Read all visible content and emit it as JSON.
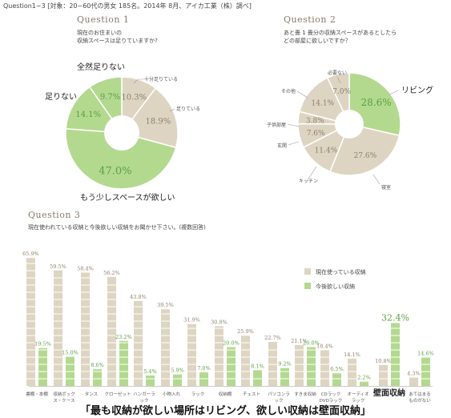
{
  "header": "Question1~3 [対象：20~60代の男女 185名。2014年 8月、アイカ工業（株）調べ]",
  "colors": {
    "green": "#b3d98f",
    "beige": "#ddd5c2",
    "green_text": "#5aa13e",
    "beige_text": "#8c7f6a",
    "label": "#555555"
  },
  "q1": {
    "title": "Question 1",
    "text_lines": [
      "現在のお住まいの",
      "収納スペースは足りていますか?"
    ]
  },
  "q2": {
    "title": "Question 2",
    "text_lines": [
      "あと畳 1 畳分の収納スペースがあるとしたら",
      "どの部屋に欲しいですか？"
    ]
  },
  "q3": {
    "title": "Question 3",
    "text": "現在使われている収納と今後欲しい収納をお聞かせ下さい。(複数回答)"
  },
  "footer": "「最も収納が欲しい場所はリビング、欲しい収納は壁面収納」",
  "chart_data": [
    {
      "type": "pie",
      "labels": [
        "十分足りている",
        "足りている",
        "もう少しスペースが欲しい",
        "足りない",
        "全然足りない"
      ],
      "values": [
        10.3,
        18.9,
        47.0,
        14.1,
        9.7
      ],
      "value_labels": [
        "10.3%",
        "18.9%",
        "47.0%",
        "14.1%",
        "9.7%"
      ],
      "colors": [
        "#ddd5c2",
        "#ddd5c2",
        "#b3d98f",
        "#b3d98f",
        "#b3d98f"
      ]
    },
    {
      "type": "pie",
      "labels": [
        "リビング",
        "寝室",
        "キッチン",
        "玄関",
        "子供部屋",
        "その他",
        "必要ない"
      ],
      "values": [
        28.6,
        27.6,
        11.4,
        7.6,
        3.8,
        14.1,
        7.0
      ],
      "value_labels": [
        "28.6%",
        "27.6%",
        "11.4%",
        "7.6%",
        "3.8%",
        "14.1%",
        "7.0%"
      ],
      "colors": [
        "#b3d98f",
        "#ddd5c2",
        "#ddd5c2",
        "#ddd5c2",
        "#ddd5c2",
        "#ddd5c2",
        "#ddd5c2"
      ]
    },
    {
      "type": "bar",
      "categories": [
        "書棚・本棚",
        "収納ボックス・ケース",
        "タンス",
        "クローゼット",
        "ハンガーラック",
        "小物入れ",
        "ラック",
        "収納棚",
        "チェスト",
        "パソコンラック",
        "すきま収納",
        "CDラックDVDラック",
        "オーディオラック",
        "壁面収納",
        "あてはまるものがない"
      ],
      "series": [
        {
          "name": "現在使っている収納",
          "values": [
            65.9,
            59.5,
            58.4,
            56.2,
            43.8,
            39.5,
            31.9,
            30.8,
            25.9,
            22.7,
            21.1,
            18.4,
            14.1,
            10.8,
            4.3
          ]
        },
        {
          "name": "今後欲しい収納",
          "values": [
            19.5,
            15.0,
            8.6,
            23.2,
            5.4,
            5.9,
            7.0,
            20.0,
            8.1,
            9.2,
            20.0,
            6.5,
            2.2,
            32.4,
            14.6
          ]
        }
      ],
      "value_labels": [
        [
          "65.9%",
          "59.5%",
          "58.4%",
          "56.2%",
          "43.8%",
          "39.5%",
          "31.9%",
          "30.8%",
          "25.9%",
          "22.7%",
          "21.1%",
          "18.4%",
          "14.1%",
          "10.8%",
          "4.3%"
        ],
        [
          "19.5%",
          "15.0%",
          "8.6%",
          "23.2%",
          "5.4%",
          "5.9%",
          "7.0%",
          "20.0%",
          "8.1%",
          "9.2%",
          "20.0%",
          "6.5%",
          "2.2%",
          "32.4%",
          "14.6%"
        ]
      ],
      "legend_position": "top-right",
      "ylim": [
        0,
        70
      ]
    }
  ]
}
